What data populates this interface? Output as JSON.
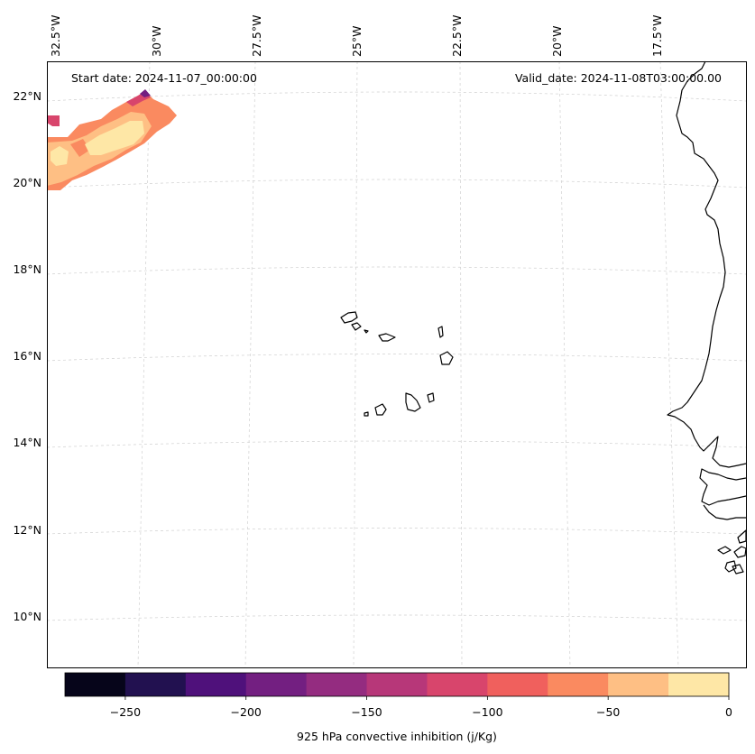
{
  "map": {
    "start_label": "Start date: 2024-11-07_00:00:00",
    "valid_label": "Valid_date: 2024-11-08T03:00:00.00",
    "lon_labels": [
      "32.5°W",
      "30°W",
      "27.5°W",
      "25°W",
      "22.5°W",
      "20°W",
      "17.5°W"
    ],
    "lat_labels": [
      "22°N",
      "20°N",
      "18°N",
      "16°N",
      "14°N",
      "12°N",
      "10°N"
    ],
    "gridlines": true,
    "region": "Cabo Verde and the West African coast"
  },
  "colorbar": {
    "label": "925 hPa convective inhibition (j/Kg)",
    "tick_labels": [
      "−250",
      "−200",
      "−150",
      "−100",
      "−50",
      "0"
    ],
    "levels": [
      -275,
      -250,
      -225,
      -200,
      -175,
      -150,
      -125,
      -100,
      -75,
      -50,
      -25,
      0
    ],
    "colors": [
      "#06051a",
      "#221150",
      "#4f117b",
      "#731f81",
      "#942c80",
      "#b73779",
      "#d8456c",
      "#f0605d",
      "#fa8a60",
      "#febf84",
      "#fee7a6"
    ]
  }
}
